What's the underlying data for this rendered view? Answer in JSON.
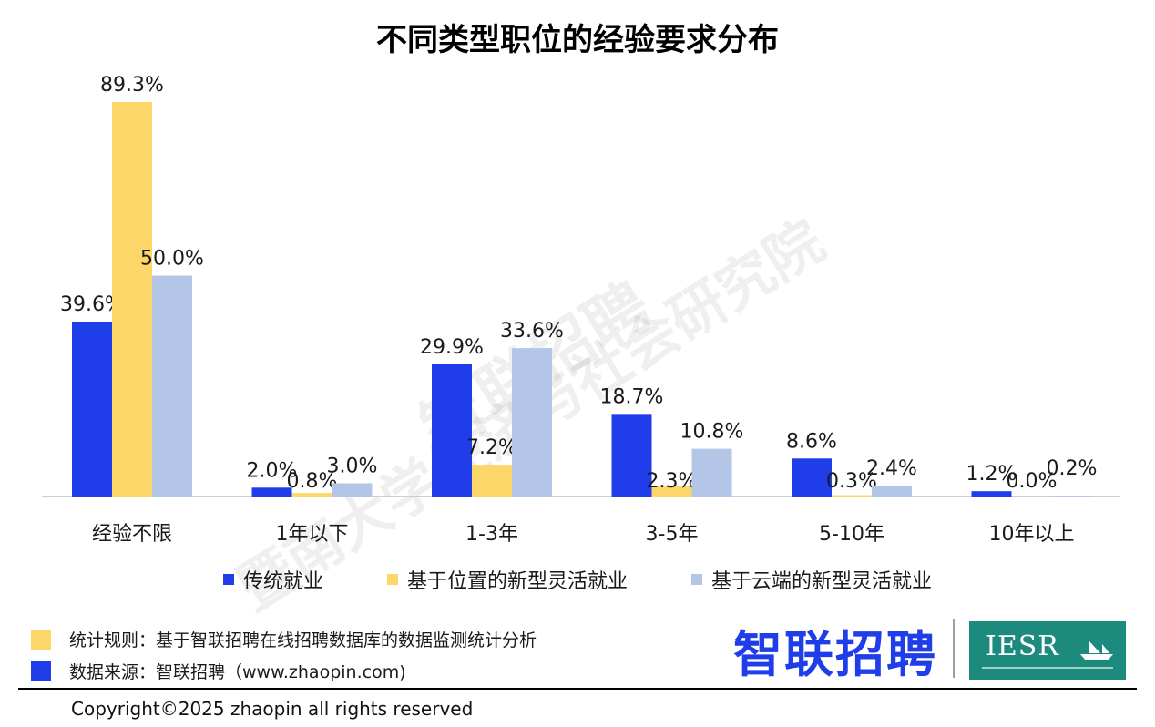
{
  "chart_data": {
    "type": "bar",
    "title": "不同类型职位的经验要求分布",
    "categories": [
      "经验不限",
      "1年以下",
      "1-3年",
      "3-5年",
      "5-10年",
      "10年以上"
    ],
    "series": [
      {
        "name": "传统就业",
        "color": "#1f3de8",
        "values": [
          39.6,
          2.0,
          29.9,
          18.7,
          8.6,
          1.2
        ],
        "labels": [
          "39.6%",
          "2.0%",
          "29.9%",
          "18.7%",
          "8.6%",
          "1.2%"
        ]
      },
      {
        "name": "基于位置的新型灵活就业",
        "color": "#fdd66a",
        "values": [
          89.3,
          0.8,
          7.2,
          2.3,
          0.3,
          0.0
        ],
        "labels": [
          "89.3%",
          "0.8%",
          "7.2%",
          "2.3%",
          "0.3%",
          "0.0%"
        ]
      },
      {
        "name": "基于云端的新型灵活就业",
        "color": "#b4c6e7",
        "values": [
          50.0,
          3.0,
          33.6,
          10.8,
          2.4,
          0.2
        ],
        "labels": [
          "50.0%",
          "3.0%",
          "33.6%",
          "10.8%",
          "2.4%",
          "0.2%"
        ]
      }
    ],
    "ylim": [
      0,
      100
    ],
    "grid": false,
    "legend_position": "bottom"
  },
  "watermark": {
    "line1": "智联招聘",
    "line2": "暨南大学经济与社会研究院"
  },
  "notes": [
    {
      "color": "#fdd66a",
      "text": "统计规则：基于智联招聘在线招聘数据库的数据监测统计分析"
    },
    {
      "color": "#1f3de8",
      "text": "数据来源：智联招聘（www.zhaopin.com)"
    }
  ],
  "logos": {
    "zhaopin": "智联招聘",
    "iesr": "IESR"
  },
  "copyright": "Copyright©2025 zhaopin all rights reserved"
}
